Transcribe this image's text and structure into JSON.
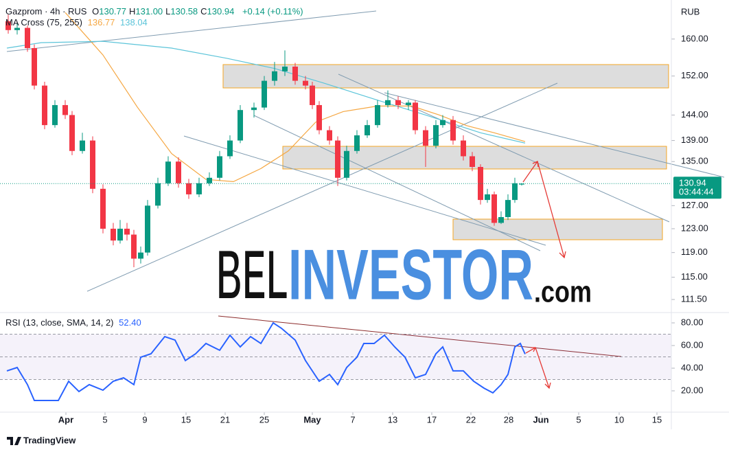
{
  "header": {
    "symbol": "Gazprom · 4h · RUS",
    "ohlc": [
      {
        "label": "O",
        "value": "130.77"
      },
      {
        "label": "H",
        "value": "131.00"
      },
      {
        "label": "L",
        "value": "130.58"
      },
      {
        "label": "C",
        "value": "130.94"
      }
    ],
    "change": "+0.14 (+0.11%)",
    "currency": "RUB"
  },
  "watermark": {
    "part1": "BEL",
    "part2": "INVESTOR",
    "part3": ".com"
  },
  "branding": "TradingView",
  "chart_data": [
    {
      "type": "candlestick",
      "indicator_label": "MA Cross (75, 255)",
      "log": true,
      "grid": false,
      "up_color": "#089981",
      "down_color": "#f23645",
      "xlim": [
        0,
        97.8
      ],
      "ylim": [
        109.5,
        168.9
      ],
      "yticks": [
        {
          "value": 160,
          "label": "160.00"
        },
        {
          "value": 152,
          "label": "152.00"
        },
        {
          "value": 144,
          "label": "144.00"
        },
        {
          "value": 139,
          "label": "139.00"
        },
        {
          "value": 135,
          "label": "135.00"
        },
        {
          "value": 127,
          "label": "127.00"
        },
        {
          "value": 123,
          "label": "123.00"
        },
        {
          "value": 119,
          "label": "119.00"
        },
        {
          "value": 115,
          "label": "115.00"
        },
        {
          "value": 111.5,
          "label": "111.50"
        }
      ],
      "last_price": {
        "value": 130.94,
        "label": "130.94"
      },
      "countdown": "03:44:44",
      "x": [
        1.2,
        2.5,
        4.0,
        5.0,
        6.5,
        8.0,
        9.5,
        10.5,
        12.0,
        13.5,
        15.0,
        16.5,
        17.5,
        18.5,
        19.5,
        20.5,
        21.5,
        23.0,
        24.5,
        26.0,
        27.5,
        29.0,
        30.5,
        32.0,
        33.5,
        35.0,
        37.0,
        38.5,
        40.0,
        41.5,
        43.0,
        44.5,
        45.5,
        46.5,
        48.0,
        49.2,
        50.5,
        52.0,
        53.5,
        55.0,
        56.5,
        58.0,
        59.5,
        60.5,
        62.0,
        63.5,
        64.5,
        66.0,
        67.5,
        68.8,
        70.0,
        71.0,
        72.0,
        73.0,
        74.0,
        75.0,
        76.0
      ],
      "open": [
        164,
        162,
        162.5,
        158,
        150,
        142,
        146,
        144,
        137,
        139,
        130,
        123,
        121,
        123,
        122,
        118,
        119,
        127,
        131,
        135,
        131,
        129,
        131,
        132,
        136,
        139,
        145,
        145.5,
        151,
        153,
        154,
        151,
        150,
        146,
        141,
        139,
        132,
        137,
        140,
        142,
        146,
        147,
        146,
        146.5,
        141,
        138,
        142,
        143,
        139,
        136,
        134,
        128,
        129,
        124,
        125,
        128,
        130.77
      ],
      "high": [
        165.5,
        163.5,
        163,
        158.8,
        150.8,
        147,
        147,
        144.8,
        140.5,
        139.8,
        130.8,
        124,
        124.5,
        124,
        122.8,
        120,
        128,
        132,
        136,
        135.8,
        131.8,
        132,
        133,
        137,
        140,
        146,
        146.5,
        152,
        155,
        157.5,
        154.8,
        152,
        150.8,
        146.8,
        141.8,
        139.8,
        138,
        141,
        143,
        147,
        149,
        147.8,
        147,
        147,
        141.8,
        143,
        144,
        143.8,
        140,
        136.8,
        134.5,
        130,
        129.5,
        126,
        129,
        132,
        131
      ],
      "low": [
        161.2,
        161,
        157.2,
        149.2,
        141.2,
        141.5,
        143.2,
        136.2,
        136.5,
        129.2,
        122.2,
        120.2,
        120.5,
        121,
        116.6,
        117.2,
        118.5,
        126.5,
        130.5,
        130.2,
        128.2,
        128.5,
        130.5,
        131.5,
        135.5,
        138.5,
        143.5,
        145,
        150,
        152,
        150.2,
        149.2,
        145.2,
        140.2,
        138.2,
        130.5,
        131.5,
        136.5,
        139.5,
        141.5,
        145.5,
        145.2,
        145,
        140.2,
        134,
        137.5,
        141.5,
        138.2,
        135.2,
        133.2,
        127.2,
        127.5,
        123.5,
        123.8,
        124.5,
        127.5,
        130.58
      ],
      "close": [
        162,
        162.5,
        158,
        150,
        142,
        146,
        144,
        137,
        139,
        130,
        123,
        121,
        123,
        122,
        118,
        119,
        127,
        131,
        135,
        131,
        129,
        131,
        132,
        136,
        139,
        145,
        145.5,
        151,
        153,
        154,
        151,
        150,
        146,
        141,
        139,
        132,
        137,
        140,
        142,
        146,
        147,
        146,
        146.5,
        141,
        138,
        142,
        143,
        139,
        136,
        134,
        128,
        129,
        124,
        125,
        128,
        131,
        130.94
      ],
      "series": [
        {
          "color": "#f5a742",
          "legend_value": "136.77",
          "x": [
            9.5,
            15,
            20,
            25,
            30,
            34,
            38,
            42,
            46,
            50,
            55,
            60,
            64,
            68,
            72,
            76.5
          ],
          "values": [
            166.0,
            156.5,
            145.6,
            136.5,
            131.7,
            131.3,
            133.7,
            137.0,
            142.6,
            144.7,
            145.8,
            145.8,
            144.0,
            141.9,
            140.5,
            138.8
          ]
        },
        {
          "color": "#5bc4d9",
          "legend_value": "138.04",
          "x": [
            1,
            6,
            15,
            25,
            33,
            40,
            47,
            55,
            62,
            70,
            76.5
          ],
          "values": [
            158.0,
            159.2,
            159.5,
            158.0,
            155.8,
            153.6,
            150.6,
            147.0,
            144.0,
            140.5,
            138.5
          ]
        }
      ]
    },
    {
      "type": "line",
      "indicator_label": "RSI (13, close, SMA, 14, 2)",
      "log": false,
      "grid": false,
      "xlim": [
        0,
        97.8
      ],
      "ylim": [
        2.4,
        88.5
      ],
      "bands": [
        30,
        50,
        70
      ],
      "band_color": "#7e57c2",
      "yticks": [
        {
          "value": 80,
          "label": "80.00"
        },
        {
          "value": 60,
          "label": "60.00"
        },
        {
          "value": 40,
          "label": "40.00"
        },
        {
          "value": 20,
          "label": "20.00"
        }
      ],
      "xticks": [
        {
          "value": 9.6,
          "label": "Apr"
        },
        {
          "value": 15.3,
          "label": "5"
        },
        {
          "value": 21.1,
          "label": "9"
        },
        {
          "value": 27.1,
          "label": "15"
        },
        {
          "value": 32.8,
          "label": "21"
        },
        {
          "value": 38.5,
          "label": "25"
        },
        {
          "value": 45.5,
          "label": "May"
        },
        {
          "value": 51.4,
          "label": "7"
        },
        {
          "value": 57.2,
          "label": "13"
        },
        {
          "value": 62.9,
          "label": "17"
        },
        {
          "value": 68.6,
          "label": "22"
        },
        {
          "value": 74.1,
          "label": "28"
        },
        {
          "value": 78.8,
          "label": "Jun"
        },
        {
          "value": 84.3,
          "label": "5"
        },
        {
          "value": 90.2,
          "label": "10"
        },
        {
          "value": 95.7,
          "label": "15"
        }
      ],
      "series": [
        {
          "color": "#2962ff",
          "legend_value": "52.40",
          "x": [
            1.0,
            2.5,
            4.0,
            5.0,
            7.0,
            8.5,
            10.0,
            11.5,
            13.0,
            15.0,
            16.5,
            18.0,
            19.5,
            20.5,
            22.0,
            24.0,
            25.5,
            27.0,
            28.5,
            30.0,
            32.0,
            33.5,
            35.0,
            36.5,
            38.0,
            39.8,
            41.0,
            43.0,
            44.5,
            46.5,
            48.0,
            49.2,
            50.5,
            52.0,
            53.0,
            54.5,
            56.0,
            57.5,
            59.0,
            60.5,
            62.0,
            63.5,
            64.5,
            66.0,
            67.5,
            69.0,
            70.5,
            71.8,
            73.0,
            74.0,
            75.0,
            75.8,
            76.5
          ],
          "values": [
            37.6,
            40.6,
            25.5,
            11.5,
            11.5,
            11.5,
            28.5,
            19.4,
            25.5,
            20.6,
            28.5,
            31.5,
            25.5,
            49.7,
            52.7,
            67.9,
            64.8,
            46.7,
            52.7,
            61.8,
            55.8,
            69.1,
            58.8,
            67.9,
            61.8,
            80,
            75.2,
            64.8,
            46.7,
            28.5,
            34.5,
            25.5,
            40.6,
            49.7,
            61.8,
            61.8,
            69.1,
            58.8,
            49.7,
            31.5,
            34.5,
            52.7,
            58.8,
            37.6,
            37.6,
            28.5,
            22.4,
            18.2,
            25.5,
            34.5,
            58.8,
            61.8,
            52.4
          ]
        }
      ]
    }
  ]
}
